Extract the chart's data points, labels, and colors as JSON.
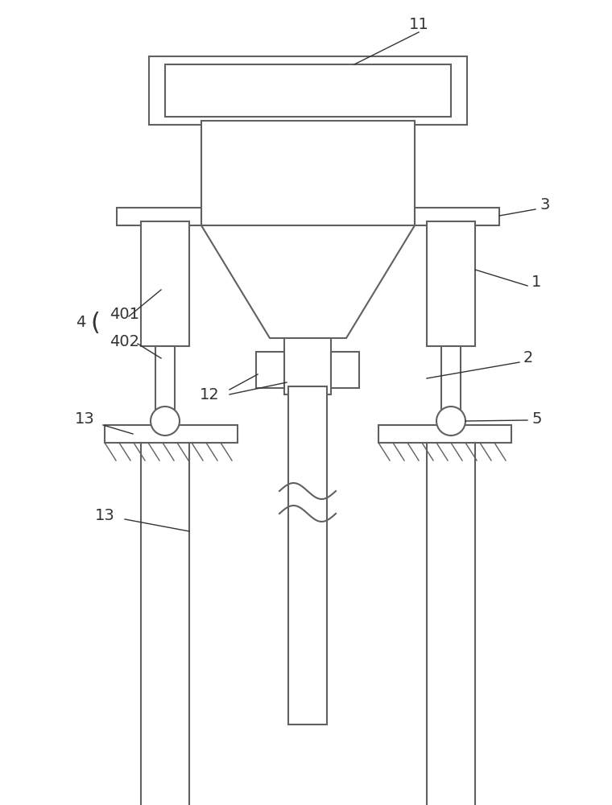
{
  "bg_color": "#ffffff",
  "line_color": "#606060",
  "line_width": 1.5,
  "fig_width": 7.6,
  "fig_height": 10.0
}
